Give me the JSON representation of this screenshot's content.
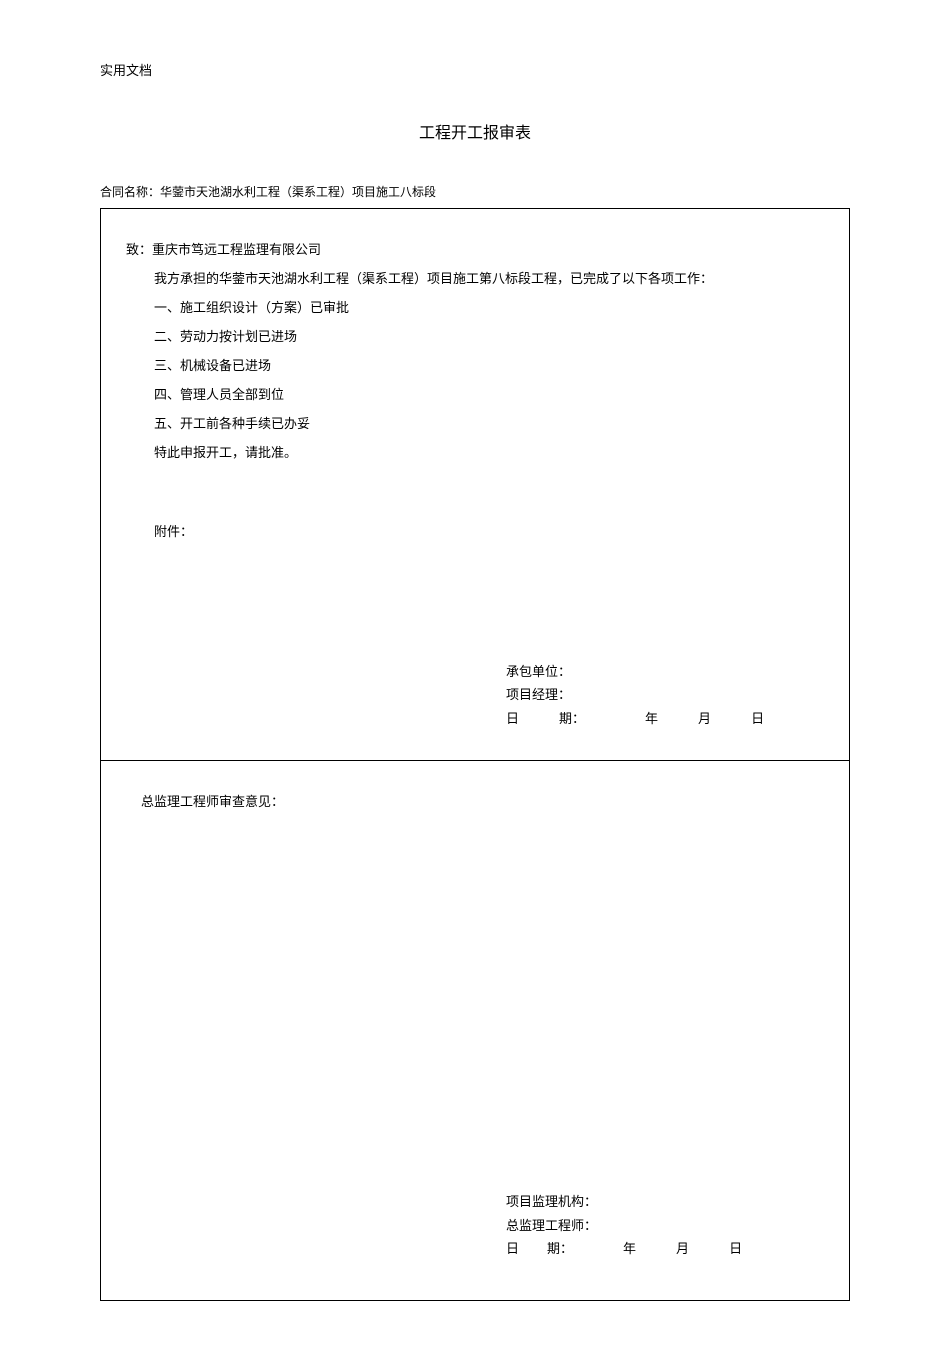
{
  "header_label": "实用文档",
  "title": "工程开工报审表",
  "contract_name_label": "合同名称：",
  "contract_name_value": "华蓥市天池湖水利工程（渠系工程）项目施工八标段",
  "addressee_prefix": "致：",
  "addressee_name": "重庆市笃远工程监理有限公司",
  "intro_text": "我方承担的华蓥市天池湖水利工程（渠系工程）项目施工第八标段工程，已完成了以下各项工作：",
  "items": {
    "i1": "一、施工组织设计（方案）已审批",
    "i2": "二、劳动力按计划已进场",
    "i3": "三、机械设备已进场",
    "i4": "四、管理人员全部到位",
    "i5": "五、开工前各种手续已办妥"
  },
  "apply_text": "特此申报开工，请批准。",
  "attachment_label": "附件：",
  "contractor": {
    "unit_label": "承包单位：",
    "pm_label": "项目经理：",
    "date_prefix": "日",
    "date_label": "期：",
    "year_label": "年",
    "month_label": "月",
    "day_label": "日"
  },
  "review_title": "总监理工程师审查意见：",
  "supervisor": {
    "org_label": "项目监理机构：",
    "chief_label": "总监理工程师：",
    "date_prefix": "日",
    "date_label": "期：",
    "year_label": "年",
    "month_label": "月",
    "day_label": "日"
  },
  "colors": {
    "text": "#000000",
    "background": "#ffffff",
    "border": "#000000"
  }
}
